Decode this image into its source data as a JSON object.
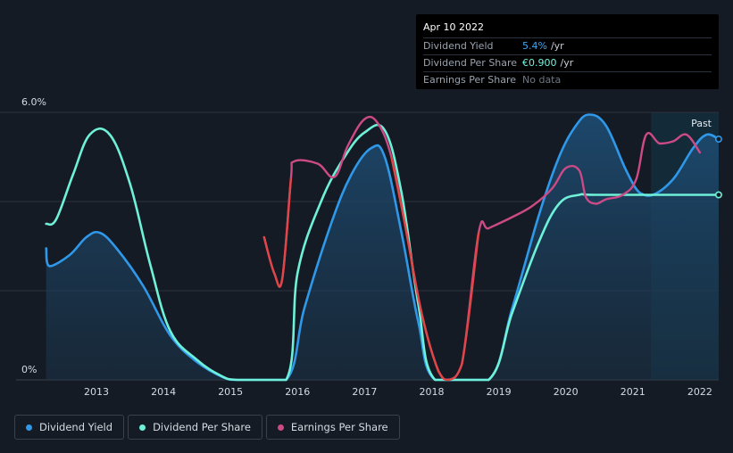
{
  "colors": {
    "background": "#151b24",
    "dividend_yield": "#2f98e8",
    "dividend_per_share": "#6ff0d8",
    "earnings_per_share": "#cc4a86",
    "eps_decline": "#e04646",
    "grid": "#2c333d",
    "past_region": "#13303f"
  },
  "tooltip": {
    "date": "Apr 10 2022",
    "rows": [
      {
        "label": "Dividend Yield",
        "value": "5.4%",
        "unit": "/yr"
      },
      {
        "label": "Dividend Per Share",
        "value": "€0.900",
        "unit": "/yr"
      },
      {
        "label": "Earnings Per Share",
        "value": "No data",
        "unit": ""
      }
    ]
  },
  "legend": [
    {
      "label": "Dividend Yield",
      "color": "#2f98e8"
    },
    {
      "label": "Dividend Per Share",
      "color": "#6ff0d8"
    },
    {
      "label": "Earnings Per Share",
      "color": "#cc4a86"
    }
  ],
  "chart_data": {
    "type": "line",
    "title": "",
    "y_tick_labels": [
      "6.0%",
      "0%"
    ],
    "ylim": [
      0,
      6.0
    ],
    "xlim": [
      2012.2,
      2022.28
    ],
    "x_ticks": [
      2013,
      2014,
      2015,
      2016,
      2017,
      2018,
      2019,
      2020,
      2021,
      2022
    ],
    "x_tick_labels": [
      "2013",
      "2014",
      "2015",
      "2016",
      "2017",
      "2018",
      "2019",
      "2020",
      "2021",
      "2022"
    ],
    "past_label": "Past",
    "past_region_start": 2021.27,
    "series": [
      {
        "name": "Dividend Yield",
        "unit": "%",
        "filled": true,
        "points": [
          [
            2012.25,
            2.95
          ],
          [
            2012.3,
            2.55
          ],
          [
            2012.6,
            2.8
          ],
          [
            2012.85,
            3.2
          ],
          [
            2013.05,
            3.3
          ],
          [
            2013.3,
            2.95
          ],
          [
            2013.7,
            2.1
          ],
          [
            2014.1,
            1.0
          ],
          [
            2014.5,
            0.4
          ],
          [
            2014.9,
            0.05
          ],
          [
            2015.1,
            0.0
          ],
          [
            2015.83,
            0.0
          ],
          [
            2016.1,
            1.6
          ],
          [
            2016.5,
            3.5
          ],
          [
            2016.8,
            4.6
          ],
          [
            2017.1,
            5.2
          ],
          [
            2017.3,
            5.0
          ],
          [
            2017.55,
            3.3
          ],
          [
            2017.8,
            1.3
          ],
          [
            2018.05,
            0.0
          ],
          [
            2018.85,
            0.0
          ],
          [
            2019.2,
            1.6
          ],
          [
            2019.6,
            3.7
          ],
          [
            2019.9,
            5.0
          ],
          [
            2020.15,
            5.7
          ],
          [
            2020.35,
            5.95
          ],
          [
            2020.6,
            5.7
          ],
          [
            2020.9,
            4.7
          ],
          [
            2021.1,
            4.2
          ],
          [
            2021.3,
            4.15
          ],
          [
            2021.6,
            4.5
          ],
          [
            2021.9,
            5.2
          ],
          [
            2022.1,
            5.5
          ],
          [
            2022.28,
            5.4
          ]
        ]
      },
      {
        "name": "Dividend Per Share",
        "unit": "€",
        "filled": false,
        "points": [
          [
            2012.25,
            3.5
          ],
          [
            2012.4,
            3.6
          ],
          [
            2012.65,
            4.6
          ],
          [
            2012.9,
            5.5
          ],
          [
            2013.2,
            5.5
          ],
          [
            2013.5,
            4.4
          ],
          [
            2013.8,
            2.6
          ],
          [
            2014.1,
            1.1
          ],
          [
            2014.5,
            0.45
          ],
          [
            2014.85,
            0.1
          ],
          [
            2015.1,
            0.0
          ],
          [
            2015.83,
            0.0
          ],
          [
            2016.0,
            2.4
          ],
          [
            2016.35,
            4.0
          ],
          [
            2016.7,
            5.0
          ],
          [
            2017.0,
            5.55
          ],
          [
            2017.3,
            5.6
          ],
          [
            2017.55,
            4.2
          ],
          [
            2017.8,
            1.7
          ],
          [
            2018.05,
            0.0
          ],
          [
            2018.85,
            0.0
          ],
          [
            2019.2,
            1.5
          ],
          [
            2019.6,
            3.1
          ],
          [
            2019.9,
            3.95
          ],
          [
            2020.2,
            4.15
          ],
          [
            2020.5,
            4.15
          ],
          [
            2022.28,
            4.15
          ]
        ]
      },
      {
        "name": "Earnings Per Share",
        "unit": "€",
        "filled": false,
        "points": [
          [
            2015.5,
            3.2
          ],
          [
            2015.65,
            2.4
          ],
          [
            2015.77,
            2.25
          ],
          [
            2015.9,
            4.5
          ],
          [
            2015.95,
            4.9
          ],
          [
            2016.3,
            4.85
          ],
          [
            2016.55,
            4.55
          ],
          [
            2016.75,
            5.25
          ],
          [
            2017.0,
            5.85
          ],
          [
            2017.2,
            5.75
          ],
          [
            2017.4,
            5.0
          ],
          [
            2017.6,
            3.5
          ],
          [
            2017.85,
            1.5
          ],
          [
            2018.1,
            0.2
          ],
          [
            2018.25,
            0.0
          ],
          [
            2018.45,
            0.35
          ],
          [
            2018.7,
            3.3
          ],
          [
            2018.85,
            3.4
          ],
          [
            2019.2,
            3.65
          ],
          [
            2019.5,
            3.9
          ],
          [
            2019.8,
            4.3
          ],
          [
            2020.0,
            4.75
          ],
          [
            2020.2,
            4.7
          ],
          [
            2020.3,
            4.1
          ],
          [
            2020.45,
            3.95
          ],
          [
            2020.6,
            4.05
          ],
          [
            2020.85,
            4.15
          ],
          [
            2021.05,
            4.5
          ],
          [
            2021.2,
            5.5
          ],
          [
            2021.4,
            5.3
          ],
          [
            2021.6,
            5.35
          ],
          [
            2021.8,
            5.5
          ],
          [
            2022.0,
            5.1
          ]
        ],
        "decline_segments": [
          [
            0,
            3
          ],
          [
            10,
            16
          ]
        ]
      }
    ],
    "markers": [
      {
        "series": "Dividend Yield",
        "x": 2022.28,
        "y": 5.4
      },
      {
        "series": "Dividend Per Share",
        "x": 2022.28,
        "y": 4.15
      }
    ]
  }
}
